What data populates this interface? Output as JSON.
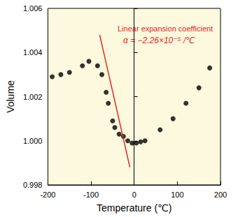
{
  "chart_data": {
    "type": "scatter",
    "x_label": "Temperature (℃)",
    "y_label": "Volume",
    "xlim": [
      -200,
      200
    ],
    "xticks": [
      -200,
      -100,
      0,
      100,
      200
    ],
    "ylim": [
      0.998,
      1.006
    ],
    "yticks": [
      0.998,
      {
        "value": 1,
        "label": "1.000"
      },
      1.002,
      1.004,
      1.006
    ],
    "grid": false,
    "annotations": [
      "Linear expansion coefficient",
      "α = −2.26×10⁻⁵ /℃"
    ],
    "series": [
      {
        "type": "scatter",
        "color": "#000000",
        "marker": "circle",
        "x": [
          -190,
          -170,
          -150,
          -120,
          -105,
          -85,
          -75,
          -65,
          -60,
          -50,
          -45,
          -35,
          -25,
          -15,
          -5,
          5,
          15,
          25,
          60,
          90,
          120,
          150,
          175
        ],
        "values": [
          1.0029,
          1.003,
          1.0031,
          1.0034,
          1.0036,
          1.0034,
          1.003,
          1.0022,
          1.0017,
          1.0009,
          1.0006,
          1.0003,
          1.0002,
          1.0,
          0.9999,
          0.9999,
          0.99995,
          1.0,
          1.0005,
          1.001,
          1.0017,
          1.0024,
          1.0033
        ]
      },
      {
        "type": "line",
        "color": "#e8251f",
        "line_style": "solid",
        "x": [
          -80,
          -10
        ],
        "values": [
          1.0048,
          0.9988
        ]
      }
    ]
  }
}
